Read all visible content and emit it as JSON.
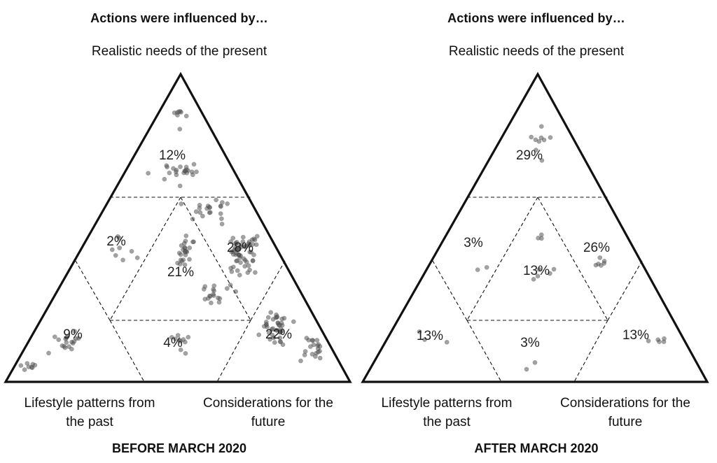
{
  "colors": {
    "stroke": "#111111",
    "dot_fill": "#555555",
    "background": "#ffffff"
  },
  "panels": [
    {
      "heading": "Actions were influenced by…",
      "top_label": "Realistic needs of the present",
      "left_label_line1": "Lifestyle patterns from",
      "left_label_line2": "the past",
      "right_label_line1": "Considerations for the",
      "right_label_line2": "future",
      "footer": "BEFORE MARCH 2020",
      "regions": {
        "top": "12%",
        "upper_left": "2%",
        "center": "21%",
        "upper_right": "28%",
        "bottom_left": "9%",
        "bottom_middle": "4%",
        "bottom_right": "22%"
      }
    },
    {
      "heading": "Actions were influenced by…",
      "top_label": "Realistic needs of the present",
      "left_label_line1": "Lifestyle patterns from",
      "left_label_line2": "the past",
      "right_label_line1": "Considerations for the",
      "right_label_line2": "future",
      "footer": "AFTER MARCH 2020",
      "regions": {
        "top": "29%",
        "upper_left": "3%",
        "center": "13%",
        "upper_right": "26%",
        "bottom_left": "13%",
        "bottom_middle": "3%",
        "bottom_right": "13%"
      }
    }
  ]
}
